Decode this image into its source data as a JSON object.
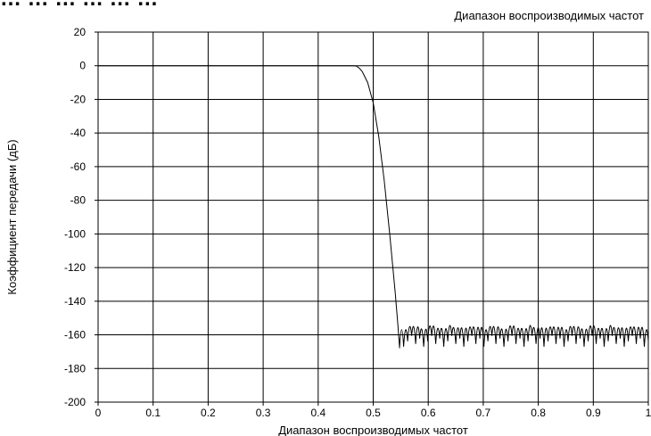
{
  "header": {
    "title": "… … … … … …",
    "subtitle": "Диапазон воспроизводимых частот"
  },
  "chart_data": {
    "type": "line",
    "title": "",
    "subtitle": "Диапазон воспроизводимых частот",
    "xlabel": "Диапазон воспроизводимых частот",
    "ylabel": "Коэффициент передачи (дБ)",
    "xlim": [
      0,
      1
    ],
    "ylim": [
      -200,
      20
    ],
    "xticks": [
      0,
      0.1,
      0.2,
      0.3,
      0.4,
      0.5,
      0.6,
      0.7,
      0.8,
      0.9,
      1
    ],
    "xtick_labels": [
      "0",
      "0.1",
      "0.2",
      "0.3",
      "0.4",
      "0.5",
      "0.6",
      "0.7",
      "0.8",
      "0.9",
      "1"
    ],
    "yticks": [
      20,
      0,
      -20,
      -40,
      -60,
      -80,
      -100,
      -120,
      -140,
      -160,
      -180,
      -200
    ],
    "ytick_labels": [
      "20",
      "0",
      "-20",
      "-40",
      "-60",
      "-80",
      "-100",
      "-120",
      "-140",
      "-160",
      "-180",
      "-200"
    ],
    "grid": true,
    "line_color": "#000000",
    "series": [
      {
        "x": [
          0,
          0.1,
          0.2,
          0.3,
          0.4,
          0.45,
          0.465,
          0.47,
          0.475,
          0.48,
          0.49,
          0.5,
          0.51,
          0.52,
          0.53,
          0.54,
          0.545,
          0.548
        ],
        "y": [
          0,
          0,
          0,
          0,
          0,
          0,
          0,
          -0.3,
          -1.5,
          -3.5,
          -10,
          -22,
          -42,
          -68,
          -100,
          -135,
          -155,
          -168
        ]
      }
    ],
    "stopband": {
      "x_start": 0.548,
      "x_end": 1,
      "peak_db": -151,
      "min_db": -167,
      "lobes": 62
    }
  }
}
